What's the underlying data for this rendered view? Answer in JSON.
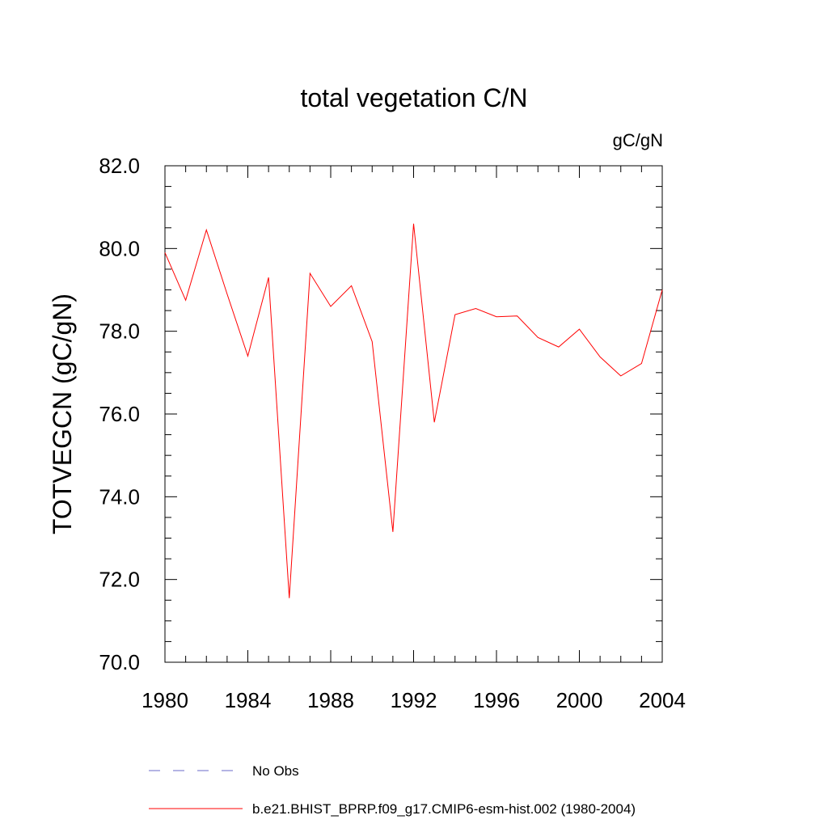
{
  "chart_data": {
    "type": "line",
    "title": "total vegetation C/N",
    "units_label": "gC/gN",
    "xlabel": "",
    "ylabel": "TOTVEGCN  (gC/gN)",
    "xlim": [
      1980,
      2004
    ],
    "ylim": [
      70,
      82
    ],
    "x_ticks": [
      1980,
      1984,
      1988,
      1992,
      1996,
      2000,
      2004
    ],
    "x_tick_labels": [
      "1980",
      "1984",
      "1988",
      "1992",
      "1996",
      "2000",
      "2004"
    ],
    "y_ticks": [
      70,
      72,
      74,
      76,
      78,
      80,
      82
    ],
    "y_tick_labels": [
      "70.0",
      "72.0",
      "74.0",
      "76.0",
      "78.0",
      "80.0",
      "82.0"
    ],
    "grid": false,
    "legend_position": "bottom",
    "series": [
      {
        "name": "No Obs",
        "color": "#6a6ac8",
        "style": "dashed",
        "x": [],
        "values": []
      },
      {
        "name": "b.e21.BHIST_BPRP.f09_g17.CMIP6-esm-hist.002 (1980-2004)",
        "color": "#ff0000",
        "style": "solid",
        "x": [
          1980,
          1981,
          1982,
          1983,
          1984,
          1985,
          1986,
          1987,
          1988,
          1989,
          1990,
          1991,
          1992,
          1993,
          1994,
          1995,
          1996,
          1997,
          1998,
          1999,
          2000,
          2001,
          2002,
          2003,
          2004
        ],
        "values": [
          79.9,
          78.75,
          80.45,
          78.9,
          77.4,
          79.3,
          71.55,
          79.4,
          78.6,
          79.1,
          77.75,
          73.15,
          80.6,
          75.8,
          78.4,
          78.55,
          78.35,
          78.37,
          77.85,
          77.62,
          78.05,
          77.38,
          76.92,
          77.22,
          79.0
        ]
      }
    ]
  }
}
